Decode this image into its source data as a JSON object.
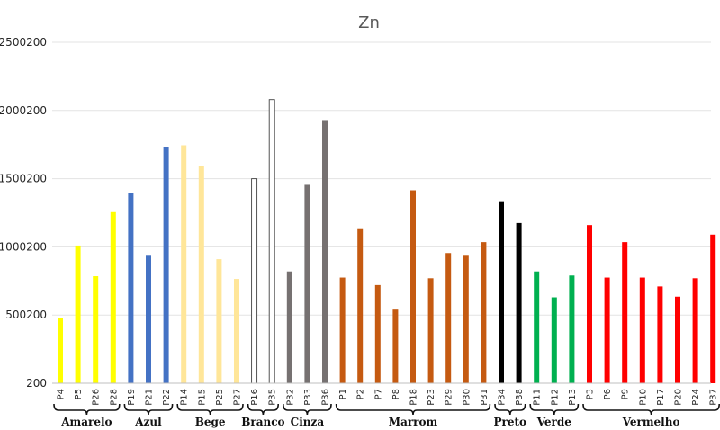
{
  "chart_data": {
    "type": "bar",
    "title": "Zn",
    "y_ticks": [
      "200",
      "500200",
      "1000200",
      "1500200",
      "2000200",
      "2500200"
    ],
    "ylim": [
      200,
      2500200
    ],
    "grid": true,
    "groups": [
      {
        "name": "Amarelo",
        "color": "#ffff00",
        "outline": false,
        "categories": [
          "P4",
          "P5",
          "P26",
          "P28"
        ],
        "values": [
          480000,
          1010000,
          785000,
          1255000
        ]
      },
      {
        "name": "Azul",
        "color": "#4472c4",
        "outline": false,
        "categories": [
          "P19",
          "P21",
          "P22"
        ],
        "values": [
          1395000,
          935000,
          1735000
        ]
      },
      {
        "name": "Bege",
        "color": "#ffe699",
        "outline": false,
        "categories": [
          "P14",
          "P15",
          "P25",
          "P27"
        ],
        "values": [
          1745000,
          1590000,
          910000,
          765000
        ]
      },
      {
        "name": "Branco",
        "color": "#ffffff",
        "outline": true,
        "categories": [
          "P16",
          "P35"
        ],
        "values": [
          1500000,
          2080000
        ]
      },
      {
        "name": "Cinza",
        "color": "#767171",
        "outline": false,
        "categories": [
          "P32",
          "P33",
          "P36"
        ],
        "values": [
          820000,
          1455000,
          1930000
        ]
      },
      {
        "name": "Marrom",
        "color": "#c55a11",
        "outline": false,
        "categories": [
          "P1",
          "P2",
          "P7",
          "P8",
          "P18",
          "P23",
          "P29",
          "P30",
          "P31"
        ],
        "values": [
          775000,
          1130000,
          720000,
          540000,
          1415000,
          770000,
          955000,
          935000,
          1035000
        ]
      },
      {
        "name": "Preto",
        "color": "#000000",
        "outline": false,
        "categories": [
          "P34",
          "P38"
        ],
        "values": [
          1335000,
          1175000
        ]
      },
      {
        "name": "Verde",
        "color": "#00b050",
        "outline": false,
        "categories": [
          "P11",
          "P12",
          "P13"
        ],
        "values": [
          820000,
          630000,
          790000
        ]
      },
      {
        "name": "Vermelho",
        "color": "#ff0000",
        "outline": false,
        "categories": [
          "P3",
          "P6",
          "P9",
          "P10",
          "P17",
          "P20",
          "P24",
          "P37"
        ],
        "values": [
          1160000,
          775000,
          1035000,
          775000,
          710000,
          635000,
          770000,
          1090000
        ]
      }
    ]
  }
}
